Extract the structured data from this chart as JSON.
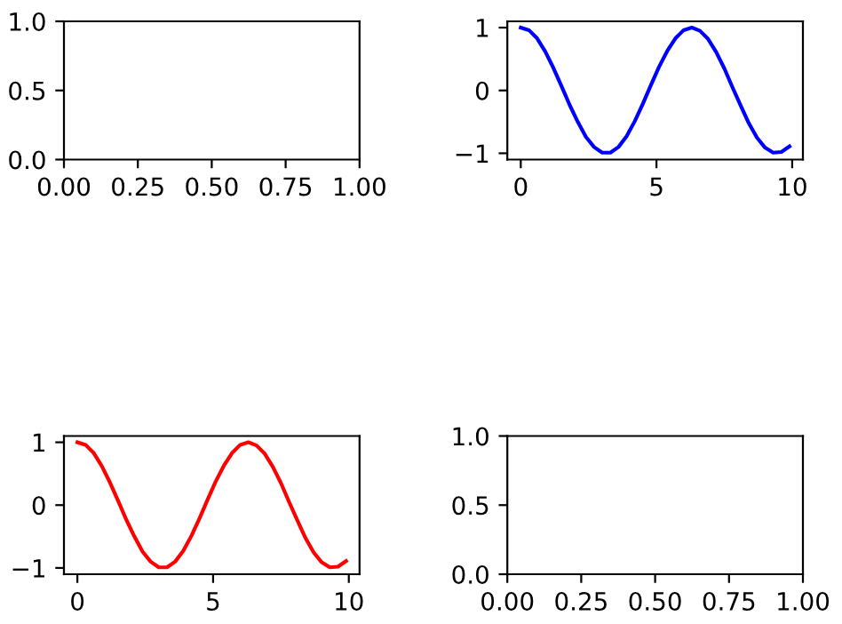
{
  "chart_data": [
    {
      "type": "line",
      "xlim": [
        0,
        1
      ],
      "ylim": [
        0,
        1
      ],
      "xticks": [
        {
          "value": 0,
          "label": "0.00"
        },
        {
          "value": 0.25,
          "label": "0.25"
        },
        {
          "value": 0.5,
          "label": "0.50"
        },
        {
          "value": 0.75,
          "label": "0.75"
        },
        {
          "value": 1,
          "label": "1.00"
        }
      ],
      "yticks": [
        {
          "value": 0,
          "label": "0.0"
        },
        {
          "value": 0.5,
          "label": "0.5"
        },
        {
          "value": 1,
          "label": "1.0"
        }
      ],
      "grid": false
    },
    {
      "type": "line",
      "x": [
        0,
        0.3,
        0.6,
        0.9,
        1.2,
        1.5,
        1.8,
        2.1,
        2.4,
        2.7,
        3.0,
        3.3,
        3.6,
        3.9,
        4.2,
        4.5,
        4.8,
        5.1,
        5.4,
        5.7,
        6.0,
        6.3,
        6.6,
        6.9,
        7.2,
        7.5,
        7.8,
        8.1,
        8.4,
        8.7,
        9.0,
        9.3,
        9.6,
        9.9
      ],
      "series": [
        {
          "color": "#0000ff",
          "values": [
            1.0,
            0.96,
            0.83,
            0.62,
            0.36,
            0.07,
            -0.23,
            -0.5,
            -0.74,
            -0.9,
            -0.99,
            -0.99,
            -0.9,
            -0.73,
            -0.49,
            -0.21,
            0.09,
            0.38,
            0.63,
            0.83,
            0.96,
            1.0,
            0.95,
            0.82,
            0.61,
            0.35,
            0.05,
            -0.24,
            -0.52,
            -0.75,
            -0.91,
            -0.99,
            -0.98,
            -0.89
          ]
        }
      ],
      "xlim": [
        -0.495,
        10.395
      ],
      "ylim": [
        -1.1,
        1.1
      ],
      "xticks": [
        0,
        5,
        10
      ],
      "yticks": [
        {
          "value": -1,
          "label": "−1"
        },
        0,
        1
      ],
      "grid": false
    },
    {
      "type": "line",
      "x": [
        0,
        0.3,
        0.6,
        0.9,
        1.2,
        1.5,
        1.8,
        2.1,
        2.4,
        2.7,
        3.0,
        3.3,
        3.6,
        3.9,
        4.2,
        4.5,
        4.8,
        5.1,
        5.4,
        5.7,
        6.0,
        6.3,
        6.6,
        6.9,
        7.2,
        7.5,
        7.8,
        8.1,
        8.4,
        8.7,
        9.0,
        9.3,
        9.6,
        9.9
      ],
      "series": [
        {
          "color": "#ff0000",
          "values": [
            1.0,
            0.96,
            0.83,
            0.62,
            0.36,
            0.07,
            -0.23,
            -0.5,
            -0.74,
            -0.9,
            -0.99,
            -0.99,
            -0.9,
            -0.73,
            -0.49,
            -0.21,
            0.09,
            0.38,
            0.63,
            0.83,
            0.96,
            1.0,
            0.95,
            0.82,
            0.61,
            0.35,
            0.05,
            -0.24,
            -0.52,
            -0.75,
            -0.91,
            -0.99,
            -0.98,
            -0.89
          ]
        }
      ],
      "xlim": [
        -0.495,
        10.395
      ],
      "ylim": [
        -1.1,
        1.1
      ],
      "xticks": [
        0,
        5,
        10
      ],
      "yticks": [
        {
          "value": -1,
          "label": "−1"
        },
        0,
        1
      ],
      "grid": false
    },
    {
      "type": "line",
      "xlim": [
        0,
        1
      ],
      "ylim": [
        0,
        1
      ],
      "xticks": [
        {
          "value": 0,
          "label": "0.00"
        },
        {
          "value": 0.25,
          "label": "0.25"
        },
        {
          "value": 0.5,
          "label": "0.50"
        },
        {
          "value": 0.75,
          "label": "0.75"
        },
        {
          "value": 1,
          "label": "1.00"
        }
      ],
      "yticks": [
        {
          "value": 0,
          "label": "0.0"
        },
        {
          "value": 0.5,
          "label": "0.5"
        },
        {
          "value": 1,
          "label": "1.0"
        }
      ],
      "grid": false
    }
  ]
}
